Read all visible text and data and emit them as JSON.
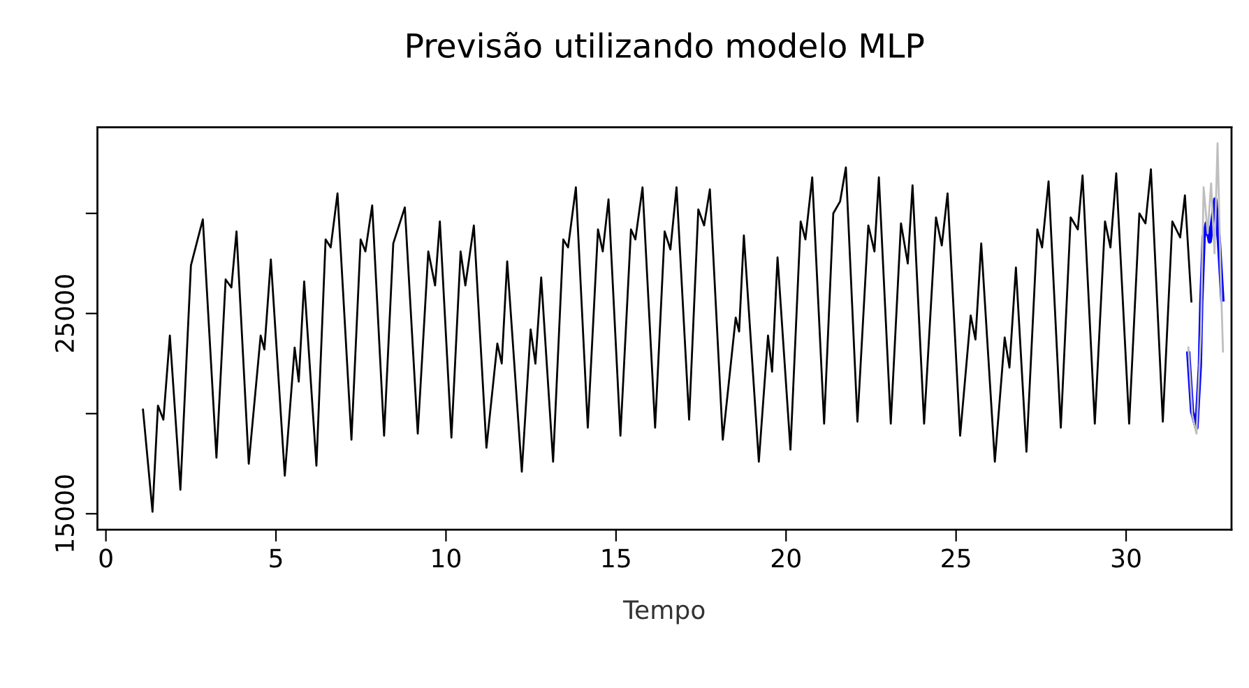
{
  "chart_data": {
    "type": "line",
    "title": "Previsão utilizando modelo MLP",
    "xlabel": "Tempo",
    "xlim": [
      -0.25,
      33.1
    ],
    "xticks": [
      0,
      5,
      10,
      15,
      20,
      25,
      30
    ],
    "ylim": [
      14200,
      34300
    ],
    "yticks": [
      15000,
      {
        "value": 20000,
        "label": null
      },
      25000,
      {
        "value": 30000,
        "label": null
      }
    ],
    "grid": false,
    "legend": false,
    "series": [
      {
        "color": "#000000",
        "x": [
          1.09,
          1.37,
          1.53,
          1.69,
          1.88,
          2.19,
          2.5,
          2.85,
          3.25,
          3.52,
          3.69,
          3.84,
          4.2,
          4.55,
          4.66,
          4.85,
          5.26,
          5.55,
          5.67,
          5.83,
          6.19,
          6.46,
          6.61,
          6.81,
          7.22,
          7.49,
          7.63,
          7.83,
          8.18,
          8.45,
          8.79,
          9.17,
          9.48,
          9.68,
          9.82,
          10.16,
          10.43,
          10.57,
          10.82,
          11.19,
          11.51,
          11.64,
          11.8,
          12.23,
          12.49,
          12.63,
          12.8,
          13.15,
          13.45,
          13.59,
          13.82,
          14.17,
          14.47,
          14.61,
          14.78,
          15.13,
          15.44,
          15.57,
          15.78,
          16.15,
          16.43,
          16.6,
          16.78,
          17.15,
          17.42,
          17.59,
          17.76,
          18.14,
          18.52,
          18.62,
          18.76,
          19.2,
          19.47,
          19.59,
          19.75,
          20.13,
          20.43,
          20.57,
          20.77,
          21.12,
          21.39,
          21.59,
          21.76,
          22.1,
          22.42,
          22.6,
          22.73,
          23.08,
          23.38,
          23.58,
          23.72,
          24.06,
          24.41,
          24.58,
          24.75,
          25.12,
          25.43,
          25.57,
          25.74,
          26.14,
          26.43,
          26.57,
          26.76,
          27.07,
          27.39,
          27.53,
          27.72,
          28.08,
          28.37,
          28.58,
          28.72,
          29.08,
          29.38,
          29.54,
          29.71,
          30.09,
          30.39,
          30.57,
          30.73,
          31.08,
          31.36,
          31.59,
          31.73,
          31.92
        ],
        "values": [
          20200,
          15100,
          20400,
          19700,
          23900,
          16200,
          27400,
          29700,
          17800,
          26700,
          26300,
          29100,
          17500,
          23900,
          23200,
          27700,
          16900,
          23300,
          21600,
          26600,
          17400,
          28700,
          28300,
          31000,
          18700,
          28700,
          28100,
          30400,
          18900,
          28500,
          30300,
          19000,
          28100,
          26400,
          29600,
          18800,
          28100,
          26400,
          29400,
          18300,
          23500,
          22500,
          27600,
          17100,
          24200,
          22500,
          26800,
          17600,
          28700,
          28300,
          31300,
          19300,
          29200,
          28100,
          30700,
          18900,
          29200,
          28700,
          31300,
          19300,
          29100,
          28200,
          31300,
          19700,
          30200,
          29400,
          31200,
          18700,
          24800,
          24100,
          28900,
          17600,
          23900,
          22100,
          27800,
          18200,
          29600,
          28700,
          31800,
          19500,
          30000,
          30600,
          32300,
          19600,
          29400,
          28100,
          31800,
          19500,
          29500,
          27500,
          31400,
          19500,
          29800,
          28400,
          31000,
          18900,
          24900,
          23700,
          28500,
          17600,
          23800,
          22300,
          27300,
          18100,
          29200,
          28300,
          31600,
          19300,
          29800,
          29200,
          31900,
          19500,
          29600,
          28300,
          32000,
          19500,
          30000,
          29500,
          32200,
          19600,
          29600,
          28800,
          30900,
          25600
        ]
      },
      {
        "color": "#0000ff",
        "x": [
          31.83,
          31.94,
          32.07,
          32.17,
          32.21,
          32.28,
          32.37,
          32.46,
          32.62,
          32.73,
          32.83
        ],
        "values": [
          23000,
          20100,
          19300,
          22400,
          25500,
          28800,
          29500,
          28600,
          30700,
          28600,
          25700
        ]
      },
      {
        "color": "#bebebe",
        "x": [
          31.83,
          31.95,
          32.07,
          32.2,
          32.28,
          32.4,
          32.5,
          32.6,
          32.69,
          32.78,
          32.85
        ],
        "values": [
          23300,
          19900,
          19000,
          24000,
          31300,
          29000,
          31500,
          28000,
          33500,
          27000,
          23100
        ]
      }
    ]
  }
}
